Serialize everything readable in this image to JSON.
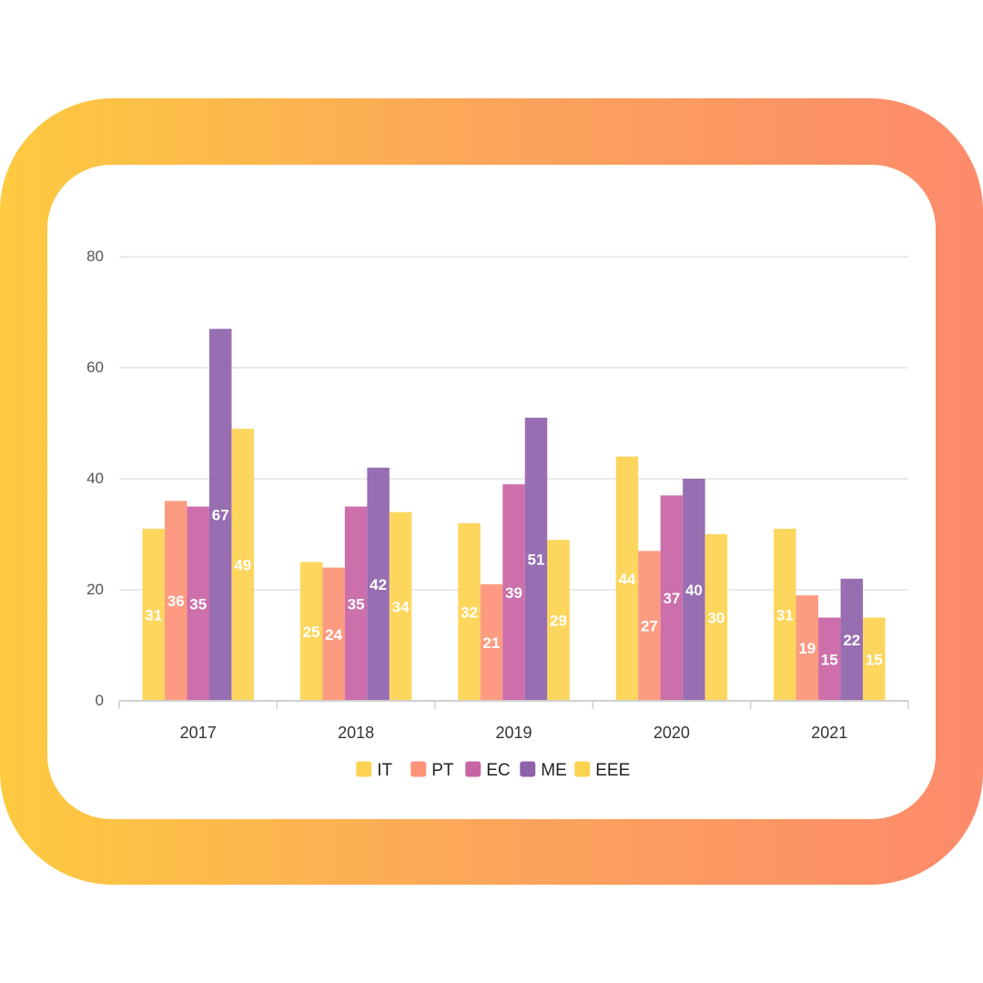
{
  "chart_data": {
    "type": "bar",
    "categories": [
      "2017",
      "2018",
      "2019",
      "2020",
      "2021"
    ],
    "series": [
      {
        "name": "IT",
        "color": "#fdd250",
        "values": [
          31,
          25,
          32,
          44,
          31
        ]
      },
      {
        "name": "PT",
        "color": "#fd9277",
        "values": [
          36,
          24,
          21,
          27,
          19
        ]
      },
      {
        "name": "EC",
        "color": "#c863a4",
        "values": [
          35,
          35,
          39,
          37,
          15
        ]
      },
      {
        "name": "ME",
        "color": "#8f62ac",
        "values": [
          67,
          42,
          51,
          40,
          22
        ]
      },
      {
        "name": "EEE",
        "color": "#fdd250",
        "values": [
          49,
          34,
          29,
          30,
          15
        ]
      }
    ],
    "yticks": [
      0,
      20,
      40,
      60,
      80
    ],
    "ylim": [
      0,
      80
    ],
    "grid": true,
    "legend_position": "bottom",
    "data_labels": true,
    "title": "",
    "xlabel": "",
    "ylabel": ""
  }
}
